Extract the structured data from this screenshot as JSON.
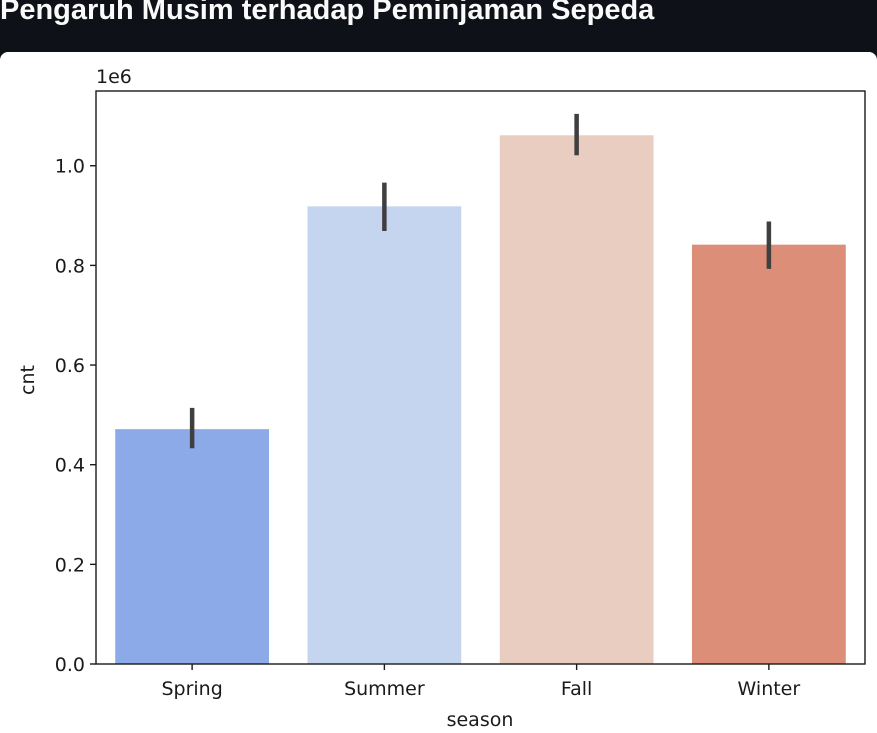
{
  "page": {
    "title": "Pengaruh Musim terhadap Peminjaman Sepeda",
    "background": "#0e1117",
    "title_color": "#fafafa"
  },
  "chart_data": {
    "type": "bar",
    "title": "",
    "xlabel": "season",
    "ylabel": "cnt",
    "y_offset_label": "1e6",
    "categories": [
      "Spring",
      "Summer",
      "Fall",
      "Winter"
    ],
    "series": [
      {
        "values": [
          471348,
          918589,
          1061129,
          841613
        ],
        "ci_low": [
          433000,
          869000,
          1021000,
          793000
        ],
        "ci_high": [
          514000,
          966000,
          1104000,
          888000
        ],
        "colors": [
          "#8caae8",
          "#c6d5ef",
          "#e9cdc0",
          "#dc8e78"
        ]
      }
    ],
    "ylim": [
      0,
      1150000
    ],
    "yticks": [
      0,
      200000,
      400000,
      600000,
      800000,
      1000000
    ],
    "ytick_labels": [
      "0.0",
      "0.2",
      "0.4",
      "0.6",
      "0.8",
      "1.0"
    ],
    "grid": false,
    "legend": "none",
    "errorbar_color": "#3f3f3f"
  }
}
